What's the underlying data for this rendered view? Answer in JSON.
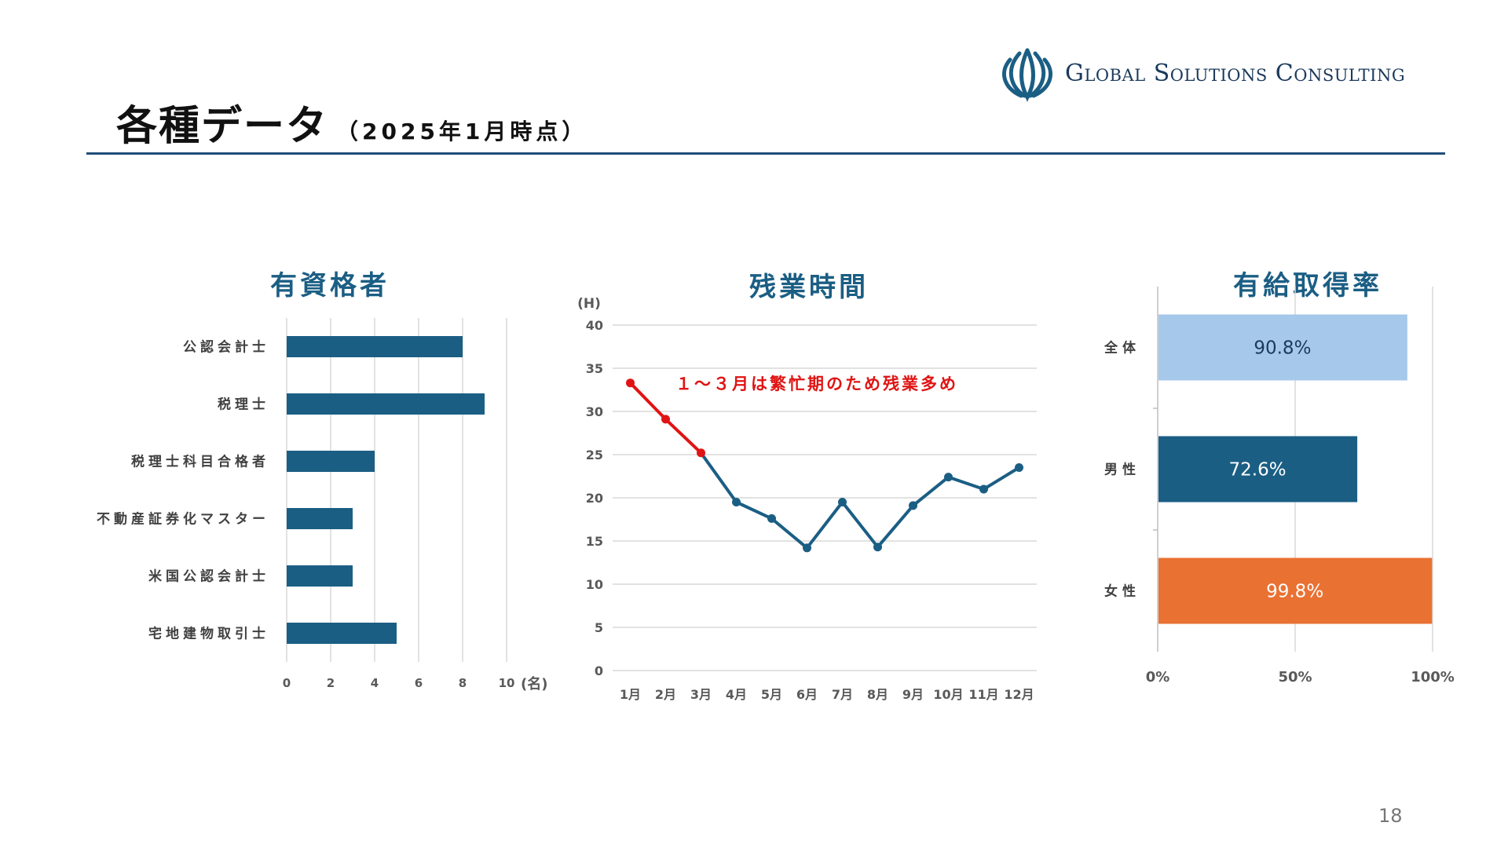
{
  "page": {
    "title": "各種データ",
    "subtitle": "（2025年1月時点）",
    "logo_text": "Global Solutions Consulting",
    "page_number": "18"
  },
  "colors": {
    "navy": "#1b5e84",
    "rule": "#1f4e79",
    "red": "#e01414",
    "light_blue": "#a5c8eb",
    "orange": "#e97132"
  },
  "chart_data": [
    {
      "type": "bar",
      "orientation": "horizontal",
      "title": "有資格者",
      "categories": [
        "公認会計士",
        "税理士",
        "税理士科目合格者",
        "不動産証券化マスター",
        "米国公認会計士",
        "宅地建物取引士"
      ],
      "values": [
        8,
        9,
        4,
        3,
        3,
        5
      ],
      "xlim": [
        0,
        10
      ],
      "xticks": [
        "0",
        "2",
        "4",
        "6",
        "8",
        "10"
      ],
      "xunit": "(名)",
      "grid": true
    },
    {
      "type": "line",
      "title": "残業時間",
      "x": [
        "1月",
        "2月",
        "3月",
        "4月",
        "5月",
        "6月",
        "7月",
        "8月",
        "9月",
        "10月",
        "11月",
        "12月"
      ],
      "values": [
        33.3,
        29.1,
        25.2,
        19.5,
        17.6,
        14.2,
        19.5,
        14.3,
        19.1,
        22.4,
        21.0,
        23.5
      ],
      "highlight_count": 3,
      "annotation": "１～３月は繁忙期のため残業多め",
      "ylim": [
        0,
        40
      ],
      "yticks": [
        "0",
        "5",
        "10",
        "15",
        "20",
        "25",
        "30",
        "35",
        "40"
      ],
      "yunit": "(H)",
      "grid": true
    },
    {
      "type": "bar",
      "orientation": "horizontal",
      "title": "有給取得率",
      "categories": [
        "全体",
        "男性",
        "女性"
      ],
      "values": [
        90.8,
        72.6,
        99.8
      ],
      "labels": [
        "90.8%",
        "72.6%",
        "99.8%"
      ],
      "bar_colors": [
        "#a5c8eb",
        "#1b5e84",
        "#e97132"
      ],
      "label_colors": [
        "#1b3a5c",
        "#ffffff",
        "#ffffff"
      ],
      "xlim": [
        0,
        100
      ],
      "xticks": [
        "0%",
        "50%",
        "100%"
      ],
      "grid": true
    }
  ]
}
